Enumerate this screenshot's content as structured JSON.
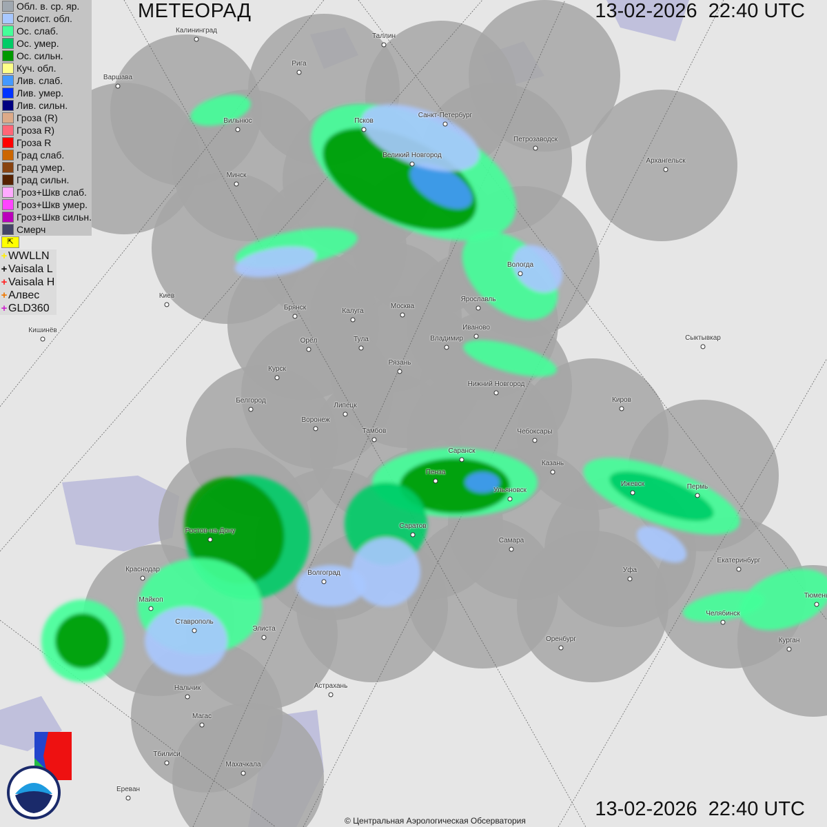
{
  "header": {
    "title": "МЕТЕОРАД",
    "timestamp": "13-02-2026  22:40 UTC"
  },
  "footer": {
    "timestamp": "13-02-2026  22:40 UTC",
    "copyright": "© Центральная Аэрологическая Обсерватория"
  },
  "legend": [
    {
      "label": "Обл. в. ср. яр.",
      "color": "#a0a8b0"
    },
    {
      "label": "Слоист. обл.",
      "color": "#a8c8ff"
    },
    {
      "label": "Ос. слаб.",
      "color": "#44ff99"
    },
    {
      "label": "Ос. умер.",
      "color": "#00cc66"
    },
    {
      "label": "Ос. сильн.",
      "color": "#009900"
    },
    {
      "label": "Куч. обл.",
      "color": "#ffff88"
    },
    {
      "label": "Лив. слаб.",
      "color": "#4499ff"
    },
    {
      "label": "Лив. умер.",
      "color": "#0033ff"
    },
    {
      "label": "Лив. сильн.",
      "color": "#000080"
    },
    {
      "label": "Гроза (R)",
      "color": "#ddaa88"
    },
    {
      "label": "Гроза R)",
      "color": "#ff6677"
    },
    {
      "label": "Гроза R",
      "color": "#ff0000"
    },
    {
      "label": "Град слаб.",
      "color": "#cc6600"
    },
    {
      "label": "Град умер.",
      "color": "#884411"
    },
    {
      "label": "Град сильн.",
      "color": "#552200"
    },
    {
      "label": "Гроз+Шкв слаб.",
      "color": "#ffaaff"
    },
    {
      "label": "Гроз+Шкв умер.",
      "color": "#ff44ff"
    },
    {
      "label": "Гроз+Шкв сильн.",
      "color": "#bb00bb"
    },
    {
      "label": "Смерч",
      "color": "#444466"
    }
  ],
  "lightning_toggle": {
    "icon": "flag-icon",
    "label": "⌈↖"
  },
  "lightning_sources": [
    {
      "label": "WWLLN",
      "color": "#ffee00"
    },
    {
      "label": "Vaisala L",
      "color": "#111111"
    },
    {
      "label": "Vaisala H",
      "color": "#ff2222"
    },
    {
      "label": "Алвес",
      "color": "#ee7700"
    },
    {
      "label": "GLD360",
      "color": "#cc22cc"
    }
  ],
  "cities": [
    "Калининград",
    "Таллин",
    "Рига",
    "Варшава",
    "Санкт-Петербург",
    "Псков",
    "Вильнюс",
    "Петрозаводск",
    "Великий Новгород",
    "Архангельск",
    "Минск",
    "Вологда",
    "Ярославль",
    "Киев",
    "Брянск",
    "Калуга",
    "Москва",
    "Иваново",
    "Кишинёв",
    "Орёл",
    "Тула",
    "Владимир",
    "Сыктывкар",
    "Рязань",
    "Курск",
    "Нижний Новгород",
    "Киров",
    "Белгород",
    "Липецк",
    "Воронеж",
    "Тамбов",
    "Чебоксары",
    "Саранск",
    "Казань",
    "Пенза",
    "Ижевск",
    "Пермь",
    "Ульяновск",
    "Саратов",
    "Ростов-на-Дону",
    "Самара",
    "Екатеринбург",
    "Краснодар",
    "Уфа",
    "Волгоград",
    "Майкоп",
    "Тюмень",
    "Челябинск",
    "Ставрополь",
    "Элиста",
    "Оренбург",
    "Курган",
    "Астрахань",
    "Нальчик",
    "Магас",
    "Тбилиси",
    "Махачкала",
    "Ереван"
  ],
  "logos": {
    "cao": "ЦАО 1941",
    "roshydromet_ru": "РОСГИДРОМЕТ",
    "roshydromet_en": "ROSHYDROMET"
  }
}
